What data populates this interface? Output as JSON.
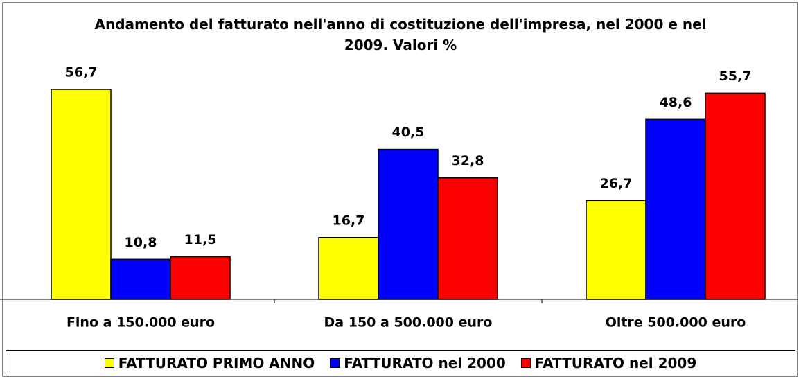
{
  "chart_data": {
    "type": "bar",
    "title": "Andamento del fatturato nell'anno di costituzione dell'impresa, nel 2000 e nel 2009. Valori %",
    "categories": [
      "Fino a 150.000 euro",
      "Da 150 a 500.000 euro",
      "Oltre 500.000 euro"
    ],
    "series": [
      {
        "name": "FATTURATO PRIMO ANNO",
        "color": "#ffff00",
        "values": [
          56.7,
          16.7,
          26.7
        ],
        "value_labels": [
          "56,7",
          "16,7",
          "26,7"
        ]
      },
      {
        "name": "FATTURATO nel 2000",
        "color": "#0000ff",
        "values": [
          10.8,
          40.5,
          48.6
        ],
        "value_labels": [
          "10,8",
          "40,5",
          "48,6"
        ]
      },
      {
        "name": "FATTURATO nel 2009",
        "color": "#ff0000",
        "values": [
          11.5,
          32.8,
          55.7
        ],
        "value_labels": [
          "11,5",
          "32,8",
          "55,7"
        ]
      }
    ],
    "ylim": [
      0,
      60
    ],
    "legend": "bottom"
  }
}
